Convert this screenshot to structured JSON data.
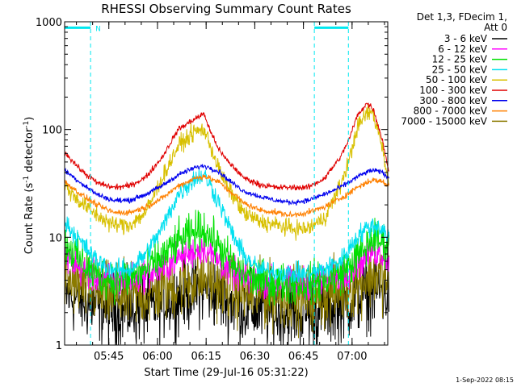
{
  "chart_data": {
    "type": "line",
    "title": "RHESSI Observing Summary Count Rates",
    "xlabel": "Start Time (29-Jul-16 05:31:22)",
    "ylabel_parts": [
      "Count Rate (s",
      "-1",
      " detector",
      "-1",
      ")"
    ],
    "yscale": "log",
    "ylim": [
      1,
      1000
    ],
    "xlim": [
      "05:31:22",
      "07:11:00"
    ],
    "ytick_labels": [
      "1",
      "10",
      "100",
      "1000"
    ],
    "xtick_labels": [
      "05:45",
      "06:00",
      "06:15",
      "06:30",
      "06:45",
      "07:00"
    ],
    "legend_header": [
      "Det 1,3, FDecim 1,",
      "Att 0"
    ],
    "legend_location": "right",
    "series": [
      {
        "name": "3 - 6 keV",
        "color": "#000000"
      },
      {
        "name": "6 - 12 keV",
        "color": "#ff00ff"
      },
      {
        "name": "12 - 25 keV",
        "color": "#00e000"
      },
      {
        "name": "25 - 50 keV",
        "color": "#00e0f0"
      },
      {
        "name": "50 - 100 keV",
        "color": "#d8c000"
      },
      {
        "name": "100 - 300 keV",
        "color": "#e00000"
      },
      {
        "name": "300 - 800 keV",
        "color": "#0000ee"
      },
      {
        "name": "800 - 7000 keV",
        "color": "#ff8000"
      },
      {
        "name": "7000 - 15000 keV",
        "color": "#8b7a00"
      }
    ],
    "profiles": {
      "time_min": [
        0,
        5,
        10,
        15,
        20,
        25,
        30,
        35,
        40,
        43,
        45,
        48,
        50,
        53,
        55,
        60,
        65,
        70,
        75,
        80,
        85,
        88,
        90,
        93,
        95,
        98,
        100
      ],
      "series": [
        {
          "name": "100 - 300 keV",
          "values": [
            62,
            42,
            32,
            29,
            30,
            36,
            55,
            100,
            125,
            140,
            95,
            62,
            52,
            42,
            36,
            31,
            29,
            29,
            29,
            35,
            55,
            85,
            130,
            175,
            160,
            80,
            40
          ]
        },
        {
          "name": "300 - 800 keV",
          "values": [
            42,
            32,
            25,
            22,
            22,
            25,
            30,
            38,
            44,
            46,
            44,
            40,
            35,
            30,
            27,
            24,
            22,
            21,
            22,
            25,
            29,
            33,
            36,
            40,
            42,
            40,
            35
          ]
        },
        {
          "name": "800 - 7000 keV",
          "values": [
            33,
            25,
            20,
            17,
            17,
            19,
            23,
            30,
            35,
            37,
            35,
            32,
            28,
            24,
            21,
            18,
            17,
            16,
            17,
            19,
            23,
            26,
            29,
            32,
            34,
            33,
            30
          ]
        },
        {
          "name": "50 - 100 keV",
          "values": [
            30,
            21,
            16,
            13,
            13,
            17,
            35,
            70,
            95,
            100,
            70,
            40,
            30,
            22,
            17,
            14,
            13,
            12,
            12,
            15,
            30,
            55,
            100,
            140,
            145,
            70,
            30
          ]
        },
        {
          "name": "25 - 50 keV",
          "values": [
            14,
            9,
            6,
            5,
            5,
            7,
            12,
            25,
            35,
            38,
            30,
            20,
            14,
            9,
            7,
            5,
            4.8,
            4.6,
            4.6,
            5,
            6,
            8,
            10,
            12,
            13,
            12,
            10
          ]
        },
        {
          "name": "12 - 25 keV",
          "values": [
            9,
            6,
            4.5,
            4,
            4.2,
            5,
            6.5,
            9,
            11,
            12,
            10,
            8,
            6.5,
            5,
            4.5,
            4,
            3.8,
            3.7,
            3.8,
            4,
            4.6,
            5.5,
            6.5,
            8,
            10,
            9,
            8
          ]
        },
        {
          "name": "6 - 12 keV",
          "values": [
            7,
            5,
            4.2,
            4,
            4,
            4.5,
            5,
            6.5,
            7.5,
            8,
            7,
            6,
            5,
            4.5,
            4.2,
            4,
            3.8,
            3.8,
            3.8,
            4,
            4.3,
            5,
            5.5,
            6.5,
            7.5,
            7,
            6
          ]
        },
        {
          "name": "7000 - 15000 keV",
          "values": [
            4,
            3.5,
            3,
            2.8,
            2.8,
            3,
            3.2,
            3.6,
            4,
            4.2,
            4,
            3.6,
            3.3,
            3.1,
            3,
            2.9,
            2.8,
            2.8,
            2.8,
            2.9,
            3.2,
            3.5,
            3.8,
            4.2,
            4.5,
            4.3,
            4
          ]
        },
        {
          "name": "3 - 6 keV",
          "values": [
            3,
            2.6,
            2.3,
            2.1,
            2.1,
            2.2,
            2.5,
            2.8,
            3.2,
            3.4,
            3.2,
            2.9,
            2.6,
            2.4,
            2.2,
            2.1,
            2,
            2,
            2,
            2.1,
            2.3,
            2.5,
            2.7,
            3,
            3.2,
            3.1,
            3
          ]
        }
      ]
    },
    "flags": {
      "label": "N",
      "intervals_min": [
        [
          0,
          8
        ],
        [
          77,
          87.5
        ]
      ],
      "level": 880,
      "color": "#00e8f0"
    }
  },
  "footer": {
    "timestamp": "1-Sep-2022 08:15"
  }
}
